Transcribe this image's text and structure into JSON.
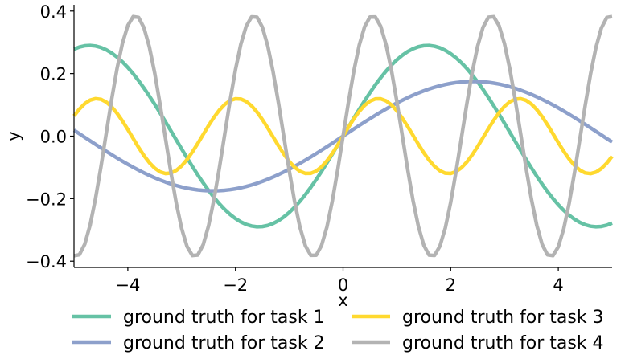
{
  "chart_data": {
    "type": "line",
    "xlabel": "x",
    "ylabel": "y",
    "xlim": [
      -5,
      5
    ],
    "ylim": [
      -0.42,
      0.42
    ],
    "xticks": [
      -4,
      -2,
      0,
      2,
      4
    ],
    "xtick_labels": [
      "−4",
      "−2",
      "0",
      "2",
      "4"
    ],
    "yticks": [
      -0.4,
      -0.2,
      0.0,
      0.2,
      0.4
    ],
    "ytick_labels": [
      "−0.4",
      "−0.2",
      "0.0",
      "0.2",
      "0.4"
    ],
    "grid": false,
    "legend_placement": "below",
    "series": [
      {
        "name": "ground truth for task 1",
        "color": "#66c2a5",
        "amplitude": 0.29,
        "frequency": 1.0
      },
      {
        "name": "ground truth for task 2",
        "color": "#8da0cb",
        "amplitude": 0.175,
        "frequency": 0.65
      },
      {
        "name": "ground truth for task 3",
        "color": "#ffd92f",
        "amplitude": 0.12,
        "frequency": 2.4
      },
      {
        "name": "ground truth for task 4",
        "color": "#b3b3b3",
        "amplitude": 0.385,
        "frequency": 2.85
      }
    ]
  }
}
